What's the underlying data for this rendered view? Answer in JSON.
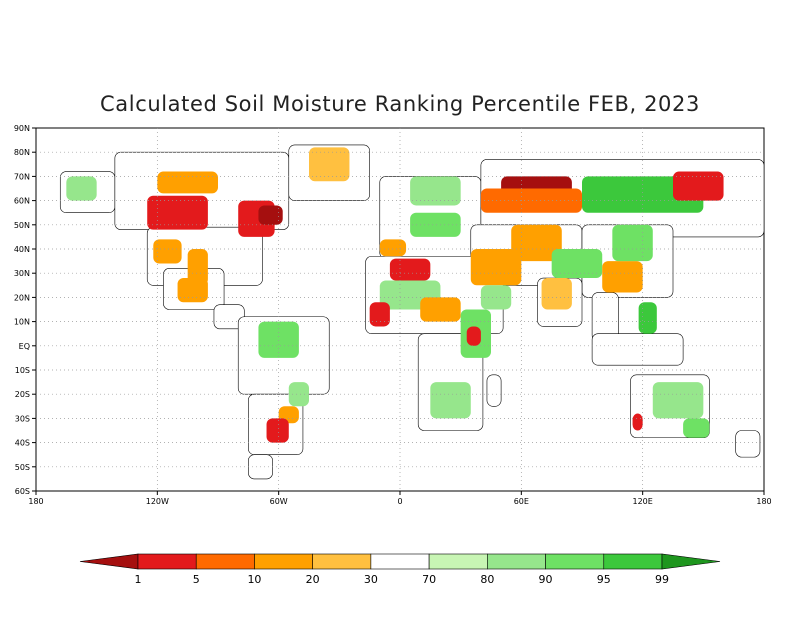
{
  "title": "Calculated Soil Moisture Ranking Percentile FEB, 2023",
  "lat_labels": [
    "90N",
    "80N",
    "70N",
    "60N",
    "50N",
    "40N",
    "30N",
    "20N",
    "10N",
    "EQ",
    "10S",
    "20S",
    "30S",
    "40S",
    "50S",
    "60S"
  ],
  "lon_labels": [
    "180",
    "120W",
    "60W",
    "0",
    "60E",
    "120E",
    "180"
  ],
  "colorbar": {
    "ticks": [
      "1",
      "5",
      "10",
      "20",
      "30",
      "70",
      "80",
      "90",
      "95",
      "99"
    ],
    "colors": [
      "#a50f0f",
      "#e31a1c",
      "#ff6a00",
      "#ffa000",
      "#ffc040",
      "#ffffff",
      "#c8f5b4",
      "#96e68c",
      "#6ee164",
      "#3cc83c",
      "#1e961e"
    ]
  },
  "regions": [
    {
      "name": "alaska",
      "lon": [
        -168,
        -141
      ],
      "lat": [
        55,
        72
      ],
      "c": "#ffffff"
    },
    {
      "name": "canada",
      "lon": [
        -141,
        -55
      ],
      "lat": [
        48,
        80
      ],
      "c": "#ffffff"
    },
    {
      "name": "greenland",
      "lon": [
        -55,
        -15
      ],
      "lat": [
        60,
        83
      ],
      "c": "#ffffff"
    },
    {
      "name": "usa",
      "lon": [
        -125,
        -68
      ],
      "lat": [
        25,
        49
      ],
      "c": "#ffffff"
    },
    {
      "name": "mexico",
      "lon": [
        -117,
        -87
      ],
      "lat": [
        15,
        32
      ],
      "c": "#ffffff"
    },
    {
      "name": "c-america",
      "lon": [
        -92,
        -77
      ],
      "lat": [
        7,
        17
      ],
      "c": "#ffffff"
    },
    {
      "name": "s-america-n",
      "lon": [
        -80,
        -35
      ],
      "lat": [
        -20,
        12
      ],
      "c": "#ffffff"
    },
    {
      "name": "s-america-s",
      "lon": [
        -75,
        -48
      ],
      "lat": [
        -45,
        -20
      ],
      "c": "#ffffff"
    },
    {
      "name": "patagonia",
      "lon": [
        -75,
        -63
      ],
      "lat": [
        -55,
        -45
      ],
      "c": "#ffffff"
    },
    {
      "name": "europe",
      "lon": [
        -10,
        40
      ],
      "lat": [
        36,
        70
      ],
      "c": "#ffffff"
    },
    {
      "name": "russia",
      "lon": [
        40,
        180
      ],
      "lat": [
        45,
        77
      ],
      "c": "#ffffff"
    },
    {
      "name": "mid-asia",
      "lon": [
        35,
        90
      ],
      "lat": [
        25,
        50
      ],
      "c": "#ffffff"
    },
    {
      "name": "east-asia",
      "lon": [
        90,
        135
      ],
      "lat": [
        20,
        50
      ],
      "c": "#ffffff"
    },
    {
      "name": "india",
      "lon": [
        68,
        90
      ],
      "lat": [
        8,
        28
      ],
      "c": "#ffffff"
    },
    {
      "name": "se-asia",
      "lon": [
        95,
        108
      ],
      "lat": [
        2,
        22
      ],
      "c": "#ffffff"
    },
    {
      "name": "indonesia",
      "lon": [
        95,
        140
      ],
      "lat": [
        -8,
        5
      ],
      "c": "#ffffff"
    },
    {
      "name": "africa-n",
      "lon": [
        -17,
        51
      ],
      "lat": [
        5,
        37
      ],
      "c": "#ffffff"
    },
    {
      "name": "africa-s",
      "lon": [
        9,
        41
      ],
      "lat": [
        -35,
        5
      ],
      "c": "#ffffff"
    },
    {
      "name": "madagascar",
      "lon": [
        43,
        50
      ],
      "lat": [
        -25,
        -12
      ],
      "c": "#ffffff"
    },
    {
      "name": "australia",
      "lon": [
        114,
        153
      ],
      "lat": [
        -38,
        -12
      ],
      "c": "#ffffff"
    },
    {
      "name": "new-zealand",
      "lon": [
        166,
        178
      ],
      "lat": [
        -46,
        -35
      ],
      "c": "#ffffff"
    },
    {
      "name": "canada-drought",
      "lon": [
        -125,
        -95
      ],
      "lat": [
        48,
        62
      ],
      "c": "#e31a1c"
    },
    {
      "name": "alaska-green",
      "lon": [
        -165,
        -150
      ],
      "lat": [
        60,
        70
      ],
      "c": "#96e68c"
    },
    {
      "name": "hudson-east",
      "lon": [
        -80,
        -62
      ],
      "lat": [
        45,
        60
      ],
      "c": "#e31a1c"
    },
    {
      "name": "quebec-red",
      "lon": [
        -70,
        -58
      ],
      "lat": [
        50,
        58
      ],
      "c": "#a50f0f"
    },
    {
      "name": "canada-north-orange",
      "lon": [
        -120,
        -90
      ],
      "lat": [
        63,
        72
      ],
      "c": "#ffa000"
    },
    {
      "name": "greenland-orange",
      "lon": [
        -45,
        -25
      ],
      "lat": [
        68,
        82
      ],
      "c": "#ffc040"
    },
    {
      "name": "us-west-orange",
      "lon": [
        -122,
        -108
      ],
      "lat": [
        34,
        44
      ],
      "c": "#ffa000"
    },
    {
      "name": "us-plains-orange",
      "lon": [
        -105,
        -95
      ],
      "lat": [
        25,
        40
      ],
      "c": "#ffa000"
    },
    {
      "name": "mexico-orange",
      "lon": [
        -110,
        -95
      ],
      "lat": [
        18,
        28
      ],
      "c": "#ffa000"
    },
    {
      "name": "s-am-green",
      "lon": [
        -70,
        -50
      ],
      "lat": [
        -5,
        10
      ],
      "c": "#6ee164"
    },
    {
      "name": "s-am-orange",
      "lon": [
        -60,
        -50
      ],
      "lat": [
        -32,
        -25
      ],
      "c": "#ffa000"
    },
    {
      "name": "argentina-red",
      "lon": [
        -66,
        -55
      ],
      "lat": [
        -40,
        -30
      ],
      "c": "#e31a1c"
    },
    {
      "name": "brazil-green",
      "lon": [
        -55,
        -45
      ],
      "lat": [
        -25,
        -15
      ],
      "c": "#96e68c"
    },
    {
      "name": "spain-orange",
      "lon": [
        -10,
        3
      ],
      "lat": [
        37,
        44
      ],
      "c": "#ffa000"
    },
    {
      "name": "nw-africa-red",
      "lon": [
        -5,
        15
      ],
      "lat": [
        27,
        36
      ],
      "c": "#e31a1c"
    },
    {
      "name": "sahara-green",
      "lon": [
        -10,
        20
      ],
      "lat": [
        15,
        27
      ],
      "c": "#96e68c"
    },
    {
      "name": "west-africa-red",
      "lon": [
        -15,
        -5
      ],
      "lat": [
        8,
        18
      ],
      "c": "#e31a1c"
    },
    {
      "name": "sahel-orange",
      "lon": [
        10,
        30
      ],
      "lat": [
        10,
        20
      ],
      "c": "#ffa000"
    },
    {
      "name": "horn-green",
      "lon": [
        30,
        45
      ],
      "lat": [
        -5,
        15
      ],
      "c": "#6ee164"
    },
    {
      "name": "e-africa-red",
      "lon": [
        33,
        40
      ],
      "lat": [
        0,
        8
      ],
      "c": "#e31a1c"
    },
    {
      "name": "s-africa-green",
      "lon": [
        15,
        35
      ],
      "lat": [
        -30,
        -15
      ],
      "c": "#96e68c"
    },
    {
      "name": "europe-green",
      "lon": [
        5,
        30
      ],
      "lat": [
        45,
        55
      ],
      "c": "#6ee164"
    },
    {
      "name": "scandinavia-green",
      "lon": [
        5,
        30
      ],
      "lat": [
        58,
        70
      ],
      "c": "#96e68c"
    },
    {
      "name": "russia-red",
      "lon": [
        50,
        85
      ],
      "lat": [
        60,
        70
      ],
      "c": "#a50f0f"
    },
    {
      "name": "russia-orange",
      "lon": [
        40,
        90
      ],
      "lat": [
        55,
        65
      ],
      "c": "#ff6a00"
    },
    {
      "name": "siberia-green",
      "lon": [
        90,
        150
      ],
      "lat": [
        55,
        70
      ],
      "c": "#3cc83c"
    },
    {
      "name": "central-asia-orange",
      "lon": [
        55,
        80
      ],
      "lat": [
        35,
        50
      ],
      "c": "#ffa000"
    },
    {
      "name": "tibet-green",
      "lon": [
        75,
        100
      ],
      "lat": [
        28,
        40
      ],
      "c": "#6ee164"
    },
    {
      "name": "china-orange",
      "lon": [
        100,
        120
      ],
      "lat": [
        22,
        35
      ],
      "c": "#ffa000"
    },
    {
      "name": "china-green",
      "lon": [
        105,
        125
      ],
      "lat": [
        35,
        50
      ],
      "c": "#6ee164"
    },
    {
      "name": "middle-east-orange",
      "lon": [
        35,
        60
      ],
      "lat": [
        25,
        40
      ],
      "c": "#ffa000"
    },
    {
      "name": "arabia-green",
      "lon": [
        40,
        55
      ],
      "lat": [
        15,
        25
      ],
      "c": "#96e68c"
    },
    {
      "name": "india-orange",
      "lon": [
        70,
        85
      ],
      "lat": [
        15,
        28
      ],
      "c": "#ffc040"
    },
    {
      "name": "philippines-green",
      "lon": [
        118,
        127
      ],
      "lat": [
        5,
        18
      ],
      "c": "#3cc83c"
    },
    {
      "name": "kamchatka-red",
      "lon": [
        135,
        160
      ],
      "lat": [
        60,
        72
      ],
      "c": "#e31a1c"
    },
    {
      "name": "australia-green",
      "lon": [
        125,
        150
      ],
      "lat": [
        -30,
        -15
      ],
      "c": "#96e68c"
    },
    {
      "name": "australia-sw-red",
      "lon": [
        115,
        120
      ],
      "lat": [
        -35,
        -28
      ],
      "c": "#e31a1c"
    },
    {
      "name": "australia-se-green",
      "lon": [
        140,
        153
      ],
      "lat": [
        -38,
        -30
      ],
      "c": "#6ee164"
    }
  ]
}
